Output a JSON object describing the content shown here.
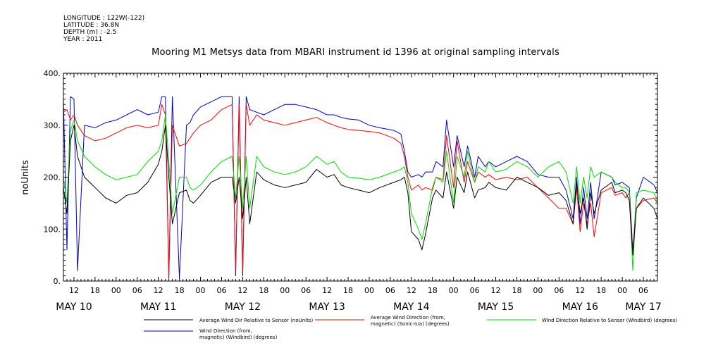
{
  "meta": {
    "longitude": "LONGITUDE : 122W(-122)",
    "latitude": "LATITUDE : 36.8N",
    "depth": "DEPTH (m) : -2.5",
    "year": "YEAR : 2011"
  },
  "chart_data": {
    "type": "line",
    "title": "Mooring M1 Metsys data from MBARI instrument id 1396 at original sampling intervals",
    "ylabel": "noUnits",
    "xlabel": "",
    "ylim": [
      0,
      400
    ],
    "xlim": [
      9,
      178
    ],
    "x_unit": "hours since May 10 00:00, 2011",
    "yticks": [
      0,
      100,
      200,
      300,
      400
    ],
    "ytick_labels": [
      "0.",
      "100.",
      "200.",
      "300.",
      "400."
    ],
    "xtick_labels": [
      {
        "x": 12,
        "label": "12"
      },
      {
        "x": 18,
        "label": "18"
      },
      {
        "x": 24,
        "label": "00"
      },
      {
        "x": 30,
        "label": "06"
      },
      {
        "x": 36,
        "label": "12"
      },
      {
        "x": 42,
        "label": "18"
      },
      {
        "x": 48,
        "label": "00"
      },
      {
        "x": 54,
        "label": "06"
      },
      {
        "x": 60,
        "label": "12"
      },
      {
        "x": 66,
        "label": "18"
      },
      {
        "x": 72,
        "label": "00"
      },
      {
        "x": 78,
        "label": "06"
      },
      {
        "x": 84,
        "label": "12"
      },
      {
        "x": 90,
        "label": "18"
      },
      {
        "x": 96,
        "label": "00"
      },
      {
        "x": 102,
        "label": "06"
      },
      {
        "x": 108,
        "label": "12"
      },
      {
        "x": 114,
        "label": "18"
      },
      {
        "x": 120,
        "label": "00"
      },
      {
        "x": 126,
        "label": "06"
      },
      {
        "x": 132,
        "label": "12"
      },
      {
        "x": 138,
        "label": "18"
      },
      {
        "x": 144,
        "label": "00"
      },
      {
        "x": 150,
        "label": "06"
      },
      {
        "x": 156,
        "label": "12"
      },
      {
        "x": 162,
        "label": "18"
      },
      {
        "x": 168,
        "label": "00"
      },
      {
        "x": 174,
        "label": "06"
      }
    ],
    "day_labels": [
      {
        "x": 12,
        "label": "MAY 10"
      },
      {
        "x": 36,
        "label": "MAY 11"
      },
      {
        "x": 60,
        "label": "MAY 12"
      },
      {
        "x": 84,
        "label": "MAY 13"
      },
      {
        "x": 108,
        "label": "MAY 14"
      },
      {
        "x": 132,
        "label": "MAY 15"
      },
      {
        "x": 156,
        "label": "MAY 16"
      },
      {
        "x": 174,
        "label": "MAY 17"
      }
    ],
    "series": [
      {
        "name": "Average Wind Dir Relative to Sensor (noUnits)",
        "color": "#000000",
        "x": [
          9,
          10,
          11,
          12,
          13,
          15,
          18,
          21,
          24,
          27,
          30,
          33,
          36,
          37,
          38,
          39,
          40,
          42,
          44,
          45,
          46,
          48,
          51,
          54,
          57,
          58,
          59,
          60,
          61,
          62,
          64,
          66,
          69,
          72,
          75,
          78,
          81,
          84,
          86,
          88,
          90,
          93,
          96,
          99,
          103,
          105,
          106,
          107,
          108,
          110,
          111,
          112,
          114,
          115,
          117,
          118,
          120,
          121,
          123,
          124,
          126,
          127,
          129,
          130,
          132,
          135,
          138,
          141,
          144,
          147,
          150,
          152,
          154,
          155,
          156,
          157,
          158,
          159,
          160,
          162,
          165,
          166,
          168,
          169,
          170,
          171,
          172,
          174,
          177,
          178
        ],
        "y": [
          180,
          130,
          270,
          300,
          240,
          200,
          180,
          160,
          150,
          165,
          170,
          190,
          225,
          250,
          300,
          200,
          110,
          170,
          175,
          155,
          150,
          165,
          190,
          200,
          200,
          150,
          200,
          120,
          200,
          110,
          210,
          195,
          185,
          180,
          185,
          190,
          215,
          200,
          205,
          185,
          180,
          175,
          170,
          180,
          190,
          195,
          200,
          170,
          95,
          80,
          60,
          90,
          160,
          175,
          160,
          210,
          140,
          200,
          170,
          210,
          160,
          175,
          180,
          190,
          180,
          175,
          200,
          190,
          180,
          165,
          170,
          155,
          110,
          190,
          130,
          160,
          100,
          170,
          130,
          175,
          190,
          170,
          175,
          170,
          155,
          50,
          140,
          160,
          140,
          120
        ]
      },
      {
        "name": "Average Wind Direction (from, magnetic) (Sonic-n/a) (degrees)",
        "color": "#ff0000",
        "x": [
          9,
          10,
          11,
          12,
          13,
          15,
          18,
          21,
          24,
          27,
          30,
          33,
          36,
          37,
          38,
          39,
          40,
          42,
          44,
          45,
          46,
          48,
          51,
          54,
          57,
          58,
          59,
          60,
          61,
          62,
          64,
          66,
          69,
          72,
          75,
          78,
          81,
          84,
          86,
          88,
          90,
          93,
          96,
          99,
          103,
          105,
          106,
          107,
          108,
          110,
          111,
          112,
          114,
          115,
          117,
          118,
          120,
          121,
          123,
          124,
          126,
          127,
          129,
          130,
          132,
          135,
          138,
          141,
          144,
          147,
          150,
          152,
          154,
          155,
          156,
          157,
          158,
          159,
          160,
          162,
          165,
          166,
          168,
          169,
          170,
          171,
          172,
          174,
          177,
          178
        ],
        "y": [
          325,
          330,
          310,
          320,
          300,
          280,
          270,
          275,
          285,
          295,
          300,
          295,
          300,
          340,
          320,
          10,
          300,
          260,
          265,
          275,
          285,
          300,
          310,
          330,
          340,
          20,
          340,
          20,
          340,
          300,
          320,
          310,
          305,
          300,
          305,
          310,
          315,
          305,
          300,
          295,
          292,
          290,
          288,
          285,
          275,
          265,
          240,
          200,
          175,
          185,
          175,
          180,
          175,
          200,
          195,
          280,
          180,
          270,
          190,
          230,
          190,
          210,
          200,
          205,
          195,
          200,
          195,
          200,
          180,
          160,
          140,
          140,
          110,
          180,
          95,
          150,
          110,
          150,
          85,
          170,
          180,
          165,
          170,
          160,
          170,
          50,
          140,
          155,
          160,
          150
        ]
      },
      {
        "name": "Wind Direction Relative to Sensor (Windbird) (degrees)",
        "color": "#00dd00",
        "x": [
          9,
          10,
          11,
          12,
          13,
          15,
          18,
          21,
          24,
          27,
          30,
          33,
          36,
          37,
          38,
          39,
          40,
          42,
          44,
          45,
          46,
          48,
          51,
          54,
          57,
          58,
          59,
          60,
          61,
          62,
          64,
          66,
          69,
          72,
          75,
          78,
          81,
          84,
          86,
          88,
          90,
          93,
          96,
          99,
          103,
          105,
          106,
          107,
          108,
          110,
          111,
          112,
          114,
          115,
          117,
          118,
          120,
          121,
          123,
          124,
          126,
          127,
          129,
          130,
          132,
          135,
          138,
          141,
          144,
          147,
          150,
          152,
          154,
          155,
          156,
          157,
          158,
          159,
          160,
          162,
          165,
          166,
          168,
          169,
          170,
          171,
          172,
          174,
          177,
          178
        ],
        "y": [
          200,
          150,
          290,
          310,
          270,
          240,
          220,
          205,
          195,
          200,
          205,
          230,
          250,
          270,
          320,
          230,
          130,
          200,
          200,
          180,
          175,
          185,
          210,
          230,
          240,
          160,
          240,
          140,
          240,
          140,
          240,
          220,
          210,
          205,
          210,
          220,
          240,
          225,
          230,
          210,
          200,
          198,
          195,
          200,
          210,
          215,
          220,
          190,
          130,
          100,
          80,
          110,
          180,
          200,
          190,
          250,
          150,
          240,
          200,
          250,
          190,
          220,
          210,
          230,
          210,
          215,
          230,
          220,
          200,
          220,
          230,
          210,
          150,
          220,
          150,
          200,
          160,
          220,
          200,
          210,
          200,
          190,
          180,
          180,
          170,
          20,
          170,
          175,
          170,
          150
        ]
      },
      {
        "name": "Wind Direction (from, magnetic) (Windbird) (degrees)",
        "color": "#0000cc",
        "x": [
          9,
          10,
          11,
          12,
          13,
          15,
          18,
          21,
          24,
          27,
          30,
          33,
          36,
          37,
          38,
          39,
          40,
          42,
          44,
          45,
          46,
          48,
          51,
          54,
          57,
          58,
          59,
          60,
          61,
          62,
          64,
          66,
          69,
          72,
          75,
          78,
          81,
          84,
          86,
          88,
          90,
          93,
          96,
          99,
          103,
          105,
          106,
          107,
          108,
          110,
          111,
          112,
          114,
          115,
          117,
          118,
          120,
          121,
          123,
          124,
          126,
          127,
          129,
          130,
          132,
          135,
          138,
          141,
          144,
          147,
          150,
          152,
          154,
          155,
          156,
          157,
          158,
          159,
          160,
          162,
          165,
          166,
          168,
          169,
          170,
          171,
          172,
          174,
          177,
          178
        ],
        "y": [
          350,
          60,
          355,
          350,
          20,
          300,
          295,
          305,
          310,
          320,
          330,
          320,
          325,
          355,
          355,
          5,
          355,
          5,
          300,
          305,
          320,
          335,
          345,
          355,
          355,
          10,
          355,
          10,
          355,
          330,
          325,
          320,
          330,
          340,
          340,
          335,
          330,
          320,
          320,
          315,
          312,
          310,
          300,
          295,
          290,
          283,
          250,
          210,
          200,
          205,
          200,
          210,
          210,
          230,
          220,
          310,
          220,
          280,
          220,
          260,
          200,
          240,
          220,
          230,
          220,
          230,
          240,
          230,
          205,
          200,
          200,
          175,
          120,
          200,
          110,
          180,
          120,
          190,
          120,
          210,
          200,
          185,
          190,
          185,
          180,
          55,
          160,
          200,
          185,
          170
        ]
      }
    ],
    "legend": [
      {
        "lines": [
          "Average Wind Dir Relative to Sensor (noUnits)"
        ],
        "color": "#000000"
      },
      {
        "lines": [
          "Average Wind Direction (from,",
          "magnetic) (Sonic-n/a) (degrees)"
        ],
        "color": "#ff0000"
      },
      {
        "lines": [
          "Wind Direction Relative to Sensor (Windbird) (degrees)"
        ],
        "color": "#00dd00"
      },
      {
        "lines": [
          "Wind Direction (from,",
          "magnetic) (Windbird) (degrees)"
        ],
        "color": "#0000cc"
      }
    ]
  }
}
